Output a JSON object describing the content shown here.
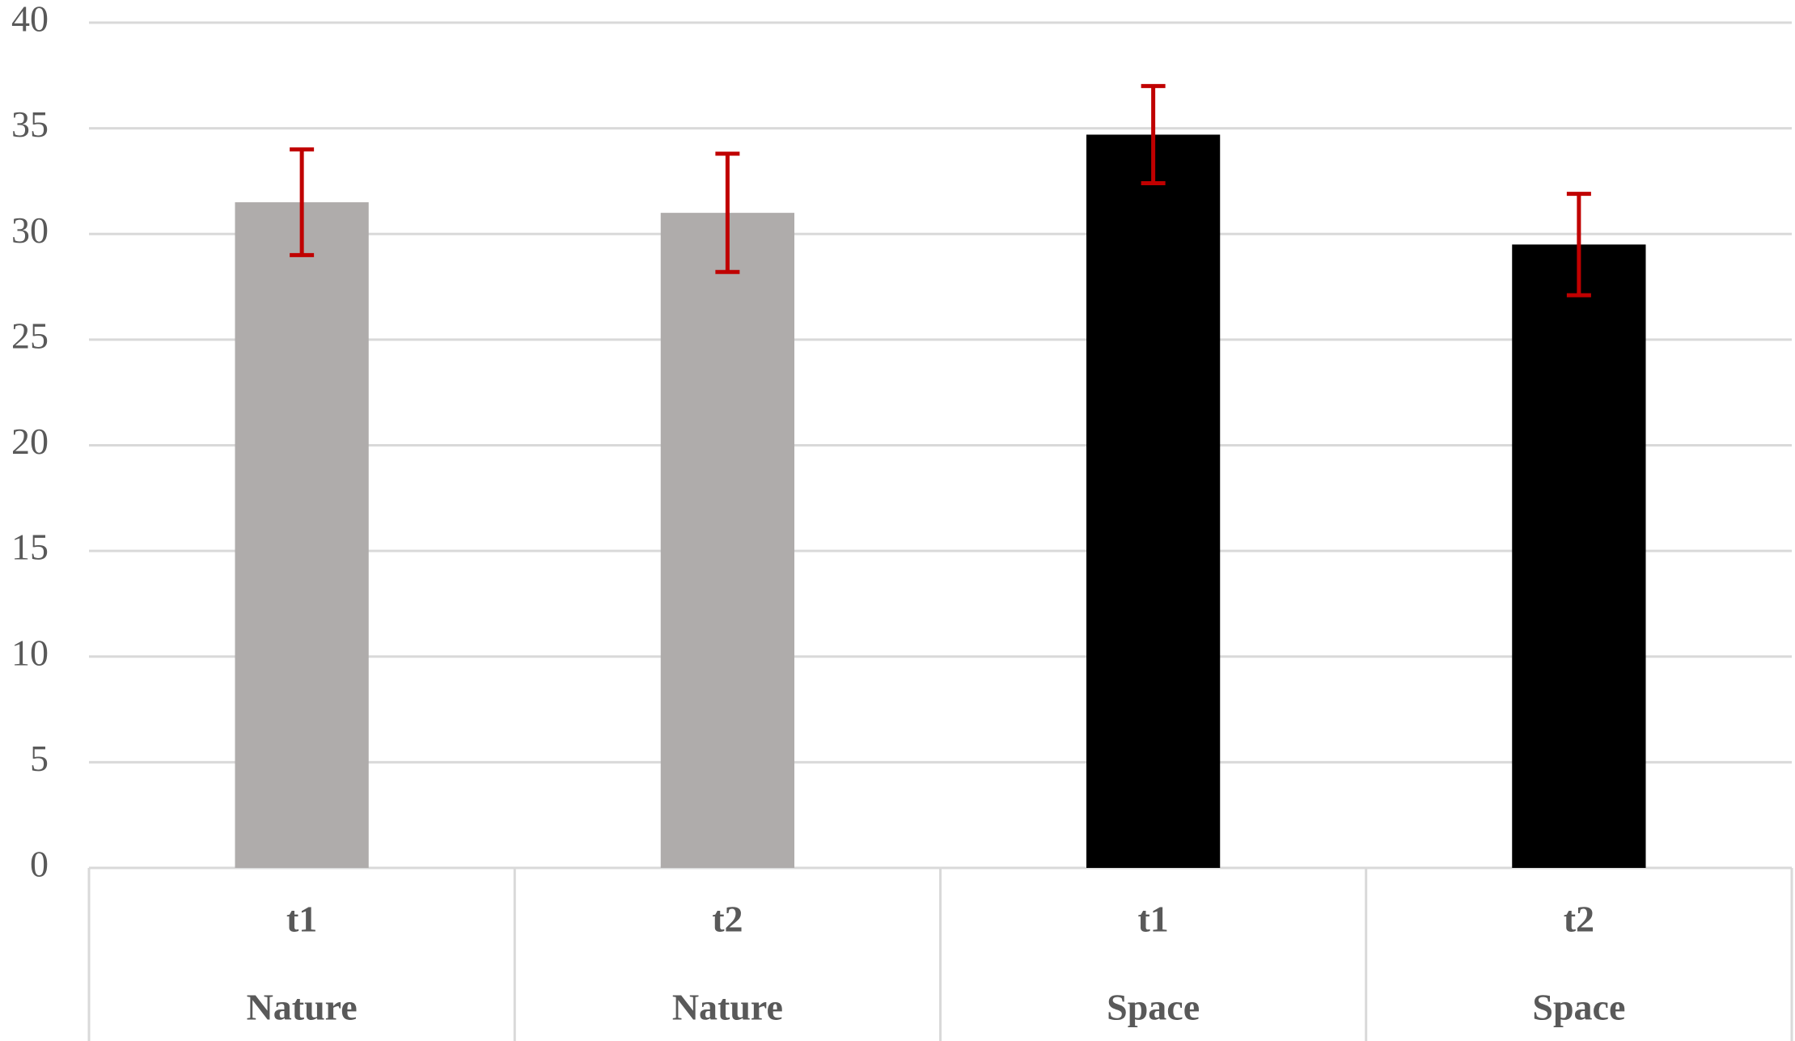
{
  "chart_data": {
    "type": "bar",
    "categories": [
      "t1",
      "t2",
      "t1",
      "t2"
    ],
    "groups": [
      "Nature",
      "Nature",
      "Space",
      "Space"
    ],
    "values": [
      31.5,
      31.0,
      34.7,
      29.5
    ],
    "errors": [
      2.5,
      2.8,
      2.3,
      2.4
    ],
    "colors": [
      "#afacab",
      "#afacab",
      "#000000",
      "#000000"
    ],
    "error_color": "#c00000",
    "ylim": [
      0,
      40
    ],
    "yticks": [
      0,
      5,
      10,
      15,
      20,
      25,
      30,
      35,
      40
    ],
    "grid": true
  }
}
